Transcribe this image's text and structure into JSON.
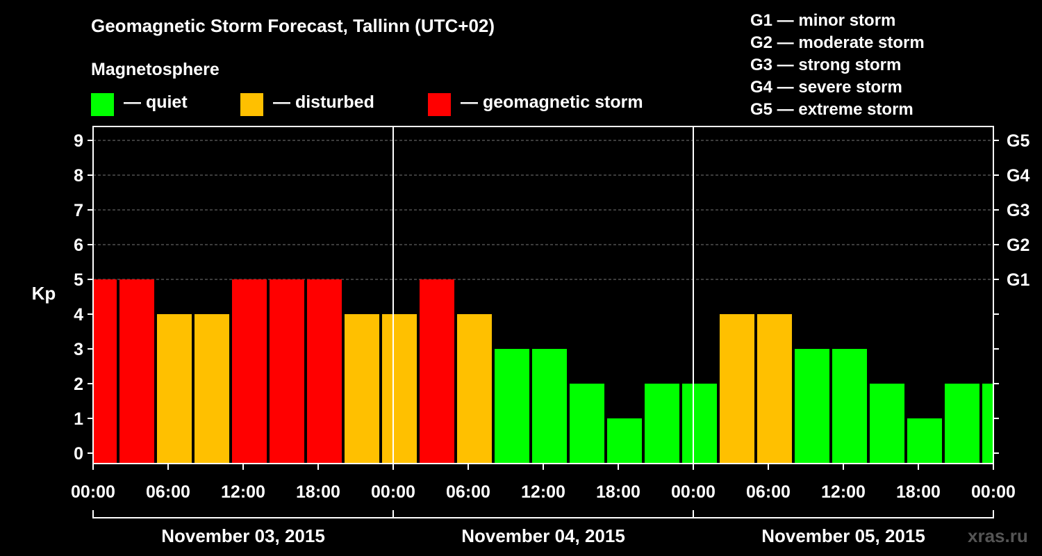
{
  "title": "Geomagnetic Storm Forecast, Tallinn (UTC+02)",
  "subtitle": "Magnetosphere",
  "legend": [
    {
      "label": "— quiet",
      "color": "#00ff00"
    },
    {
      "label": "— disturbed",
      "color": "#ffc000"
    },
    {
      "label": "— geomagnetic storm",
      "color": "#ff0000"
    }
  ],
  "storm_scale": [
    "G1 — minor storm",
    "G2 — moderate storm",
    "G3 — strong storm",
    "G4 — severe storm",
    "G5 — extreme storm"
  ],
  "watermark": "xras.ru",
  "colors": {
    "quiet": "#00ff00",
    "disturbed": "#ffc000",
    "storm": "#ff0000",
    "background": "#000000",
    "axis": "#ffffff"
  },
  "chart_data": {
    "type": "bar",
    "ylabel": "Kp",
    "ylim": [
      -0.3,
      9.4
    ],
    "yticks": [
      0,
      1,
      2,
      3,
      4,
      5,
      6,
      7,
      8,
      9
    ],
    "right_ticks": [
      {
        "value": 5,
        "label": "G1"
      },
      {
        "value": 6,
        "label": "G2"
      },
      {
        "value": 7,
        "label": "G3"
      },
      {
        "value": 8,
        "label": "G4"
      },
      {
        "value": 9,
        "label": "G5"
      }
    ],
    "xrange_hours": [
      0,
      72
    ],
    "xticks": [
      {
        "hour": 0,
        "label": "00:00"
      },
      {
        "hour": 6,
        "label": "06:00"
      },
      {
        "hour": 12,
        "label": "12:00"
      },
      {
        "hour": 18,
        "label": "18:00"
      },
      {
        "hour": 24,
        "label": "00:00"
      },
      {
        "hour": 30,
        "label": "06:00"
      },
      {
        "hour": 36,
        "label": "12:00"
      },
      {
        "hour": 42,
        "label": "18:00"
      },
      {
        "hour": 48,
        "label": "00:00"
      },
      {
        "hour": 54,
        "label": "06:00"
      },
      {
        "hour": 60,
        "label": "12:00"
      },
      {
        "hour": 66,
        "label": "18:00"
      },
      {
        "hour": 72,
        "label": "00:00"
      }
    ],
    "days": [
      {
        "label": "November 03, 2015",
        "start": 0,
        "end": 24
      },
      {
        "label": "November 04, 2015",
        "start": 24,
        "end": 48
      },
      {
        "label": "November 05, 2015",
        "start": 48,
        "end": 72
      }
    ],
    "grid": "horizontal dashed at Kp 5-9",
    "bars": [
      {
        "start": -1,
        "end": 2,
        "kp": 5,
        "level": "storm"
      },
      {
        "start": 2,
        "end": 5,
        "kp": 5,
        "level": "storm"
      },
      {
        "start": 5,
        "end": 8,
        "kp": 4,
        "level": "disturbed"
      },
      {
        "start": 8,
        "end": 11,
        "kp": 4,
        "level": "disturbed"
      },
      {
        "start": 11,
        "end": 14,
        "kp": 5,
        "level": "storm"
      },
      {
        "start": 14,
        "end": 17,
        "kp": 5,
        "level": "storm"
      },
      {
        "start": 17,
        "end": 20,
        "kp": 5,
        "level": "storm"
      },
      {
        "start": 20,
        "end": 23,
        "kp": 4,
        "level": "disturbed"
      },
      {
        "start": 23,
        "end": 26,
        "kp": 4,
        "level": "disturbed"
      },
      {
        "start": 26,
        "end": 29,
        "kp": 5,
        "level": "storm"
      },
      {
        "start": 29,
        "end": 32,
        "kp": 4,
        "level": "disturbed"
      },
      {
        "start": 32,
        "end": 35,
        "kp": 3,
        "level": "quiet"
      },
      {
        "start": 35,
        "end": 38,
        "kp": 3,
        "level": "quiet"
      },
      {
        "start": 38,
        "end": 41,
        "kp": 2,
        "level": "quiet"
      },
      {
        "start": 41,
        "end": 44,
        "kp": 1,
        "level": "quiet"
      },
      {
        "start": 44,
        "end": 47,
        "kp": 2,
        "level": "quiet"
      },
      {
        "start": 47,
        "end": 50,
        "kp": 2,
        "level": "quiet"
      },
      {
        "start": 50,
        "end": 53,
        "kp": 4,
        "level": "disturbed"
      },
      {
        "start": 53,
        "end": 56,
        "kp": 4,
        "level": "disturbed"
      },
      {
        "start": 56,
        "end": 59,
        "kp": 3,
        "level": "quiet"
      },
      {
        "start": 59,
        "end": 62,
        "kp": 3,
        "level": "quiet"
      },
      {
        "start": 62,
        "end": 65,
        "kp": 2,
        "level": "quiet"
      },
      {
        "start": 65,
        "end": 68,
        "kp": 1,
        "level": "quiet"
      },
      {
        "start": 68,
        "end": 71,
        "kp": 2,
        "level": "quiet"
      },
      {
        "start": 71,
        "end": 74,
        "kp": 2,
        "level": "quiet"
      }
    ]
  }
}
